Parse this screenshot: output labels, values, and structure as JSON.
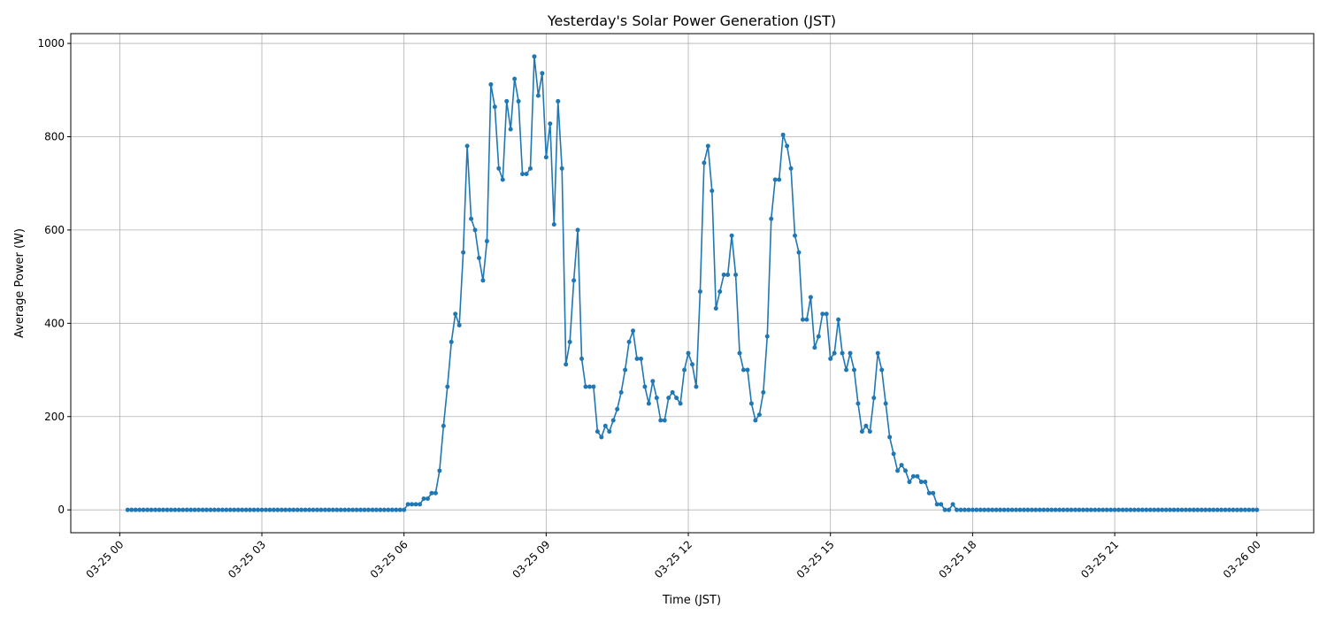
{
  "chart_data": {
    "type": "line",
    "title": "Yesterday's Solar Power Generation (JST)",
    "xlabel": "Time (JST)",
    "ylabel": "Average Power (W)",
    "grid": true,
    "marker": "circle",
    "color": "#1f77b4",
    "xlim": [
      "03-24 22:58",
      "03-26 01:12"
    ],
    "ylim": [
      -49,
      1021
    ],
    "x_ticks": [
      "03-25 00",
      "03-25 03",
      "03-25 06",
      "03-25 09",
      "03-25 12",
      "03-25 15",
      "03-25 18",
      "03-25 21",
      "03-26 00"
    ],
    "y_ticks": [
      0,
      200,
      400,
      600,
      800,
      1000
    ],
    "x": [
      "03-25 00:10",
      "03-25 00:15",
      "03-25 00:20",
      "03-25 00:25",
      "03-25 00:30",
      "03-25 00:35",
      "03-25 00:40",
      "03-25 00:45",
      "03-25 00:50",
      "03-25 00:55",
      "03-25 01:00",
      "03-25 01:05",
      "03-25 01:10",
      "03-25 01:15",
      "03-25 01:20",
      "03-25 01:25",
      "03-25 01:30",
      "03-25 01:35",
      "03-25 01:40",
      "03-25 01:45",
      "03-25 01:50",
      "03-25 01:55",
      "03-25 02:00",
      "03-25 02:05",
      "03-25 02:10",
      "03-25 02:15",
      "03-25 02:20",
      "03-25 02:25",
      "03-25 02:30",
      "03-25 02:35",
      "03-25 02:40",
      "03-25 02:45",
      "03-25 02:50",
      "03-25 02:55",
      "03-25 03:00",
      "03-25 03:05",
      "03-25 03:10",
      "03-25 03:15",
      "03-25 03:20",
      "03-25 03:25",
      "03-25 03:30",
      "03-25 03:35",
      "03-25 03:40",
      "03-25 03:45",
      "03-25 03:50",
      "03-25 03:55",
      "03-25 04:00",
      "03-25 04:05",
      "03-25 04:10",
      "03-25 04:15",
      "03-25 04:20",
      "03-25 04:25",
      "03-25 04:30",
      "03-25 04:35",
      "03-25 04:40",
      "03-25 04:45",
      "03-25 04:50",
      "03-25 04:55",
      "03-25 05:00",
      "03-25 05:05",
      "03-25 05:10",
      "03-25 05:15",
      "03-25 05:20",
      "03-25 05:25",
      "03-25 05:30",
      "03-25 05:35",
      "03-25 05:40",
      "03-25 05:45",
      "03-25 05:50",
      "03-25 05:55",
      "03-25 06:00",
      "03-25 06:05",
      "03-25 06:10",
      "03-25 06:15",
      "03-25 06:20",
      "03-25 06:25",
      "03-25 06:30",
      "03-25 06:35",
      "03-25 06:40",
      "03-25 06:45",
      "03-25 06:50",
      "03-25 06:55",
      "03-25 07:00",
      "03-25 07:05",
      "03-25 07:10",
      "03-25 07:15",
      "03-25 07:20",
      "03-25 07:25",
      "03-25 07:30",
      "03-25 07:35",
      "03-25 07:40",
      "03-25 07:45",
      "03-25 07:50",
      "03-25 07:55",
      "03-25 08:00",
      "03-25 08:05",
      "03-25 08:10",
      "03-25 08:15",
      "03-25 08:20",
      "03-25 08:25",
      "03-25 08:30",
      "03-25 08:35",
      "03-25 08:40",
      "03-25 08:45",
      "03-25 08:50",
      "03-25 08:55",
      "03-25 09:00",
      "03-25 09:05",
      "03-25 09:10",
      "03-25 09:15",
      "03-25 09:20",
      "03-25 09:25",
      "03-25 09:30",
      "03-25 09:35",
      "03-25 09:40",
      "03-25 09:45",
      "03-25 09:50",
      "03-25 09:55",
      "03-25 10:00",
      "03-25 10:05",
      "03-25 10:10",
      "03-25 10:15",
      "03-25 10:20",
      "03-25 10:25",
      "03-25 10:30",
      "03-25 10:35",
      "03-25 10:40",
      "03-25 10:45",
      "03-25 10:50",
      "03-25 10:55",
      "03-25 11:00",
      "03-25 11:05",
      "03-25 11:10",
      "03-25 11:15",
      "03-25 11:20",
      "03-25 11:25",
      "03-25 11:30",
      "03-25 11:35",
      "03-25 11:40",
      "03-25 11:45",
      "03-25 11:50",
      "03-25 11:55",
      "03-25 12:00",
      "03-25 12:05",
      "03-25 12:10",
      "03-25 12:15",
      "03-25 12:20",
      "03-25 12:25",
      "03-25 12:30",
      "03-25 12:35",
      "03-25 12:40",
      "03-25 12:45",
      "03-25 12:50",
      "03-25 12:55",
      "03-25 13:00",
      "03-25 13:05",
      "03-25 13:10",
      "03-25 13:15",
      "03-25 13:20",
      "03-25 13:25",
      "03-25 13:30",
      "03-25 13:35",
      "03-25 13:40",
      "03-25 13:45",
      "03-25 13:50",
      "03-25 13:55",
      "03-25 14:00",
      "03-25 14:05",
      "03-25 14:10",
      "03-25 14:15",
      "03-25 14:20",
      "03-25 14:25",
      "03-25 14:30",
      "03-25 14:35",
      "03-25 14:40",
      "03-25 14:45",
      "03-25 14:50",
      "03-25 14:55",
      "03-25 15:00",
      "03-25 15:05",
      "03-25 15:10",
      "03-25 15:15",
      "03-25 15:20",
      "03-25 15:25",
      "03-25 15:30",
      "03-25 15:35",
      "03-25 15:40",
      "03-25 15:45",
      "03-25 15:50",
      "03-25 15:55",
      "03-25 16:00",
      "03-25 16:05",
      "03-25 16:10",
      "03-25 16:15",
      "03-25 16:20",
      "03-25 16:25",
      "03-25 16:30",
      "03-25 16:35",
      "03-25 16:40",
      "03-25 16:45",
      "03-25 16:50",
      "03-25 16:55",
      "03-25 17:00",
      "03-25 17:05",
      "03-25 17:10",
      "03-25 17:15",
      "03-25 17:20",
      "03-25 17:25",
      "03-25 17:30",
      "03-25 17:35",
      "03-25 17:40",
      "03-25 17:45",
      "03-25 17:50",
      "03-25 17:55",
      "03-25 18:00",
      "03-25 18:05",
      "03-25 18:10",
      "03-25 18:15",
      "03-25 18:20",
      "03-25 18:25",
      "03-25 18:30",
      "03-25 18:35",
      "03-25 18:40",
      "03-25 18:45",
      "03-25 18:50",
      "03-25 18:55",
      "03-25 19:00",
      "03-25 19:05",
      "03-25 19:10",
      "03-25 19:15",
      "03-25 19:20",
      "03-25 19:25",
      "03-25 19:30",
      "03-25 19:35",
      "03-25 19:40",
      "03-25 19:45",
      "03-25 19:50",
      "03-25 19:55",
      "03-25 20:00",
      "03-25 20:05",
      "03-25 20:10",
      "03-25 20:15",
      "03-25 20:20",
      "03-25 20:25",
      "03-25 20:30",
      "03-25 20:35",
      "03-25 20:40",
      "03-25 20:45",
      "03-25 20:50",
      "03-25 20:55",
      "03-25 21:00",
      "03-25 21:05",
      "03-25 21:10",
      "03-25 21:15",
      "03-25 21:20",
      "03-25 21:25",
      "03-25 21:30",
      "03-25 21:35",
      "03-25 21:40",
      "03-25 21:45",
      "03-25 21:50",
      "03-25 21:55",
      "03-25 22:00",
      "03-25 22:05",
      "03-25 22:10",
      "03-25 22:15",
      "03-25 22:20",
      "03-25 22:25",
      "03-25 22:30",
      "03-25 22:35",
      "03-25 22:40",
      "03-25 22:45",
      "03-25 22:50",
      "03-25 22:55",
      "03-25 23:00",
      "03-25 23:05",
      "03-25 23:10",
      "03-25 23:15",
      "03-25 23:20",
      "03-25 23:25",
      "03-25 23:30",
      "03-25 23:35",
      "03-25 23:40",
      "03-25 23:45",
      "03-25 23:50",
      "03-25 23:55",
      "03-26 00:00"
    ],
    "y": [
      0,
      0,
      0,
      0,
      0,
      0,
      0,
      0,
      0,
      0,
      0,
      0,
      0,
      0,
      0,
      0,
      0,
      0,
      0,
      0,
      0,
      0,
      0,
      0,
      0,
      0,
      0,
      0,
      0,
      0,
      0,
      0,
      0,
      0,
      0,
      0,
      0,
      0,
      0,
      0,
      0,
      0,
      0,
      0,
      0,
      0,
      0,
      0,
      0,
      0,
      0,
      0,
      0,
      0,
      0,
      0,
      0,
      0,
      0,
      0,
      0,
      0,
      0,
      0,
      0,
      0,
      0,
      0,
      0,
      0,
      0,
      12,
      12,
      12,
      12,
      24,
      24,
      36,
      36,
      84,
      180,
      264,
      360,
      420,
      396,
      552,
      780,
      624,
      600,
      540,
      492,
      576,
      912,
      864,
      732,
      708,
      876,
      816,
      924,
      876,
      720,
      720,
      732,
      972,
      888,
      936,
      756,
      828,
      612,
      876,
      732,
      312,
      360,
      492,
      600,
      324,
      264,
      264,
      264,
      168,
      156,
      180,
      168,
      192,
      216,
      252,
      300,
      360,
      384,
      324,
      324,
      264,
      228,
      276,
      240,
      192,
      192,
      240,
      252,
      240,
      228,
      300,
      336,
      312,
      264,
      468,
      744,
      780,
      684,
      432,
      468,
      504,
      504,
      588,
      504,
      336,
      300,
      300,
      228,
      192,
      204,
      252,
      372,
      624,
      708,
      708,
      804,
      780,
      732,
      588,
      552,
      408,
      408,
      456,
      348,
      372,
      420,
      420,
      324,
      336,
      408,
      336,
      300,
      336,
      300,
      228,
      168,
      180,
      168,
      240,
      336,
      300,
      228,
      156,
      120,
      84,
      96,
      84,
      60,
      72,
      72,
      60,
      60,
      36,
      36,
      12,
      12,
      0,
      0,
      12,
      0,
      0,
      0,
      0,
      0,
      0,
      0,
      0,
      0,
      0,
      0,
      0,
      0,
      0,
      0,
      0,
      0,
      0,
      0,
      0,
      0,
      0,
      0,
      0,
      0,
      0,
      0,
      0,
      0,
      0,
      0,
      0,
      0,
      0,
      0,
      0,
      0,
      0,
      0,
      0,
      0,
      0,
      0,
      0,
      0,
      0,
      0,
      0,
      0,
      0,
      0,
      0,
      0,
      0,
      0,
      0,
      0,
      0,
      0,
      0,
      0,
      0,
      0,
      0,
      0,
      0,
      0,
      0,
      0,
      0,
      0,
      0,
      0,
      0,
      0,
      0,
      0
    ]
  }
}
